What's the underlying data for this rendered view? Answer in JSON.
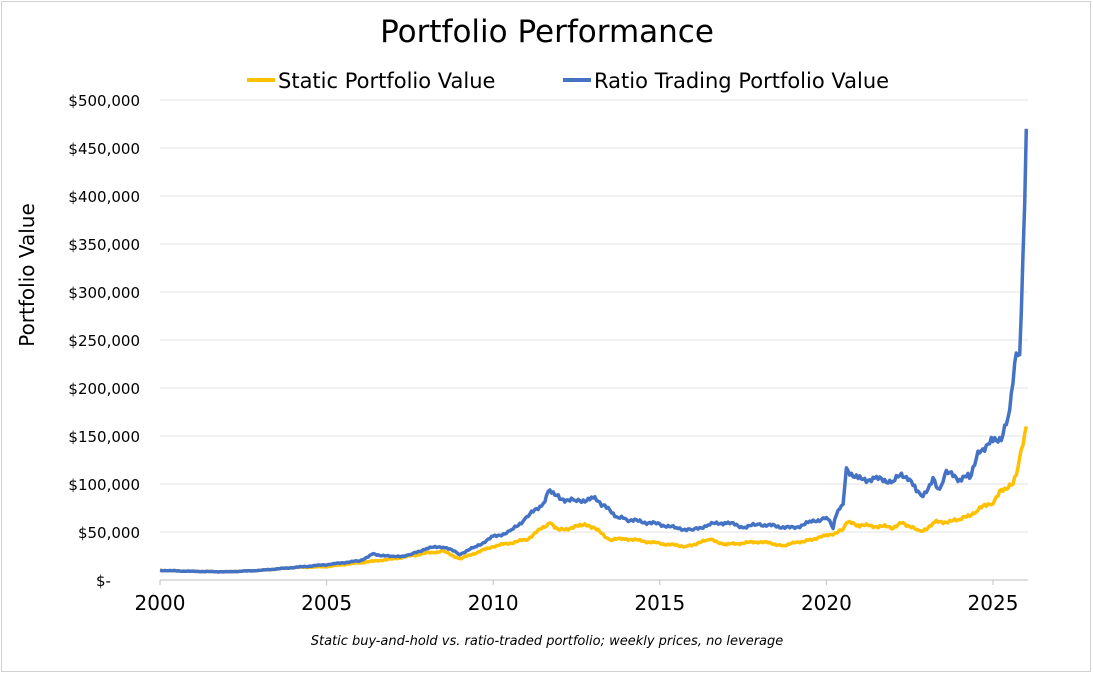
{
  "chart_data": {
    "type": "line",
    "title": "Portfolio Performance",
    "ylabel": "Portfolio Value",
    "xlabel": "",
    "caption": "Static buy-and-hold vs. ratio-traded portfolio; weekly prices, no leverage",
    "xlim": [
      2000,
      2026.05
    ],
    "ylim": [
      0,
      500000
    ],
    "x_ticks": [
      "2000",
      "2005",
      "2010",
      "2015",
      "2020",
      "2025"
    ],
    "y_ticks": [
      "$-",
      "$50,000",
      "$100,000",
      "$150,000",
      "$200,000",
      "$250,000",
      "$300,000",
      "$350,000",
      "$400,000",
      "$450,000",
      "$500,000"
    ],
    "grid": "horizontal",
    "legend_position": "top",
    "series": [
      {
        "name": "Static Portfolio Value",
        "color": "#FFC000",
        "points": [
          [
            2000,
            10000
          ],
          [
            2001,
            9000
          ],
          [
            2002,
            8500
          ],
          [
            2003,
            10000
          ],
          [
            2004,
            13000
          ],
          [
            2005,
            14000
          ],
          [
            2006,
            18000
          ],
          [
            2007,
            22000
          ],
          [
            2008,
            28000
          ],
          [
            2008.5,
            30000
          ],
          [
            2009,
            22000
          ],
          [
            2010,
            35000
          ],
          [
            2011,
            42000
          ],
          [
            2011.7,
            60000
          ],
          [
            2012,
            52000
          ],
          [
            2012.7,
            57000
          ],
          [
            2013,
            55000
          ],
          [
            2013.5,
            42000
          ],
          [
            2014,
            43000
          ],
          [
            2015,
            38000
          ],
          [
            2015.8,
            35000
          ],
          [
            2016.5,
            42000
          ],
          [
            2017,
            37000
          ],
          [
            2018,
            40000
          ],
          [
            2018.7,
            36000
          ],
          [
            2019.5,
            42000
          ],
          [
            2020,
            46000
          ],
          [
            2020.5,
            52000
          ],
          [
            2020.6,
            60000
          ],
          [
            2021,
            57000
          ],
          [
            2022,
            55000
          ],
          [
            2022.3,
            60000
          ],
          [
            2022.8,
            50000
          ],
          [
            2023.3,
            60000
          ],
          [
            2024,
            62000
          ],
          [
            2024.5,
            72000
          ],
          [
            2025,
            82000
          ],
          [
            2025.3,
            95000
          ],
          [
            2025.6,
            100000
          ],
          [
            2025.8,
            125000
          ],
          [
            2026,
            160000
          ]
        ]
      },
      {
        "name": "Ratio Trading Portfolio Value",
        "color": "#4472C4",
        "points": [
          [
            2000,
            10000
          ],
          [
            2001,
            9000
          ],
          [
            2002,
            8500
          ],
          [
            2003,
            10000
          ],
          [
            2004,
            13000
          ],
          [
            2005,
            16000
          ],
          [
            2006,
            20000
          ],
          [
            2006.4,
            27000
          ],
          [
            2007,
            24000
          ],
          [
            2007.5,
            26000
          ],
          [
            2008,
            33000
          ],
          [
            2008.5,
            35000
          ],
          [
            2009,
            27000
          ],
          [
            2009.5,
            35000
          ],
          [
            2010,
            45000
          ],
          [
            2010.5,
            50000
          ],
          [
            2011,
            65000
          ],
          [
            2011.5,
            80000
          ],
          [
            2011.7,
            95000
          ],
          [
            2012,
            85000
          ],
          [
            2012.5,
            82000
          ],
          [
            2013,
            85000
          ],
          [
            2013.3,
            78000
          ],
          [
            2013.7,
            66000
          ],
          [
            2014,
            63000
          ],
          [
            2015,
            58000
          ],
          [
            2015.5,
            54000
          ],
          [
            2016,
            52000
          ],
          [
            2016.5,
            58000
          ],
          [
            2017,
            60000
          ],
          [
            2017.5,
            55000
          ],
          [
            2018,
            58000
          ],
          [
            2019,
            54000
          ],
          [
            2019.5,
            60000
          ],
          [
            2020,
            65000
          ],
          [
            2020.2,
            55000
          ],
          [
            2020.3,
            70000
          ],
          [
            2020.5,
            80000
          ],
          [
            2020.6,
            115000
          ],
          [
            2021,
            105000
          ],
          [
            2021.5,
            105000
          ],
          [
            2022,
            103000
          ],
          [
            2022.3,
            110000
          ],
          [
            2022.7,
            95000
          ],
          [
            2022.9,
            88000
          ],
          [
            2023.2,
            105000
          ],
          [
            2023.4,
            92000
          ],
          [
            2023.6,
            112000
          ],
          [
            2024,
            105000
          ],
          [
            2024.3,
            108000
          ],
          [
            2024.6,
            135000
          ],
          [
            2025,
            145000
          ],
          [
            2025.3,
            150000
          ],
          [
            2025.5,
            175000
          ],
          [
            2025.7,
            235000
          ],
          [
            2025.8,
            235000
          ],
          [
            2025.9,
            340000
          ],
          [
            2026,
            470000
          ]
        ]
      }
    ]
  }
}
